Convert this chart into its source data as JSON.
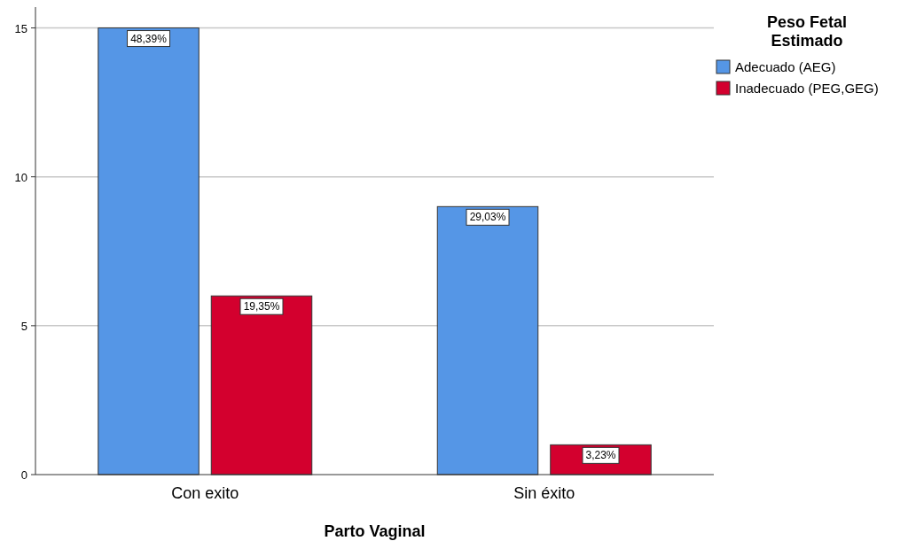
{
  "chart_data": {
    "type": "bar",
    "xlabel": "Parto Vaginal",
    "legend_title": "Peso Fetal Estimado",
    "categories": [
      "Con exito",
      "Sin éxito"
    ],
    "series": [
      {
        "name": "Adecuado (AEG)",
        "color": "#5596e6",
        "values": [
          15,
          9
        ]
      },
      {
        "name": "Inadecuado (PEG,GEG)",
        "color": "#d3002e",
        "values": [
          6,
          1
        ]
      }
    ],
    "annotations": [
      "48,39%",
      "29,03%",
      "19,35%",
      "3,23%"
    ],
    "ylim": [
      0,
      15.7
    ],
    "yticks": [
      0,
      5,
      10,
      15
    ],
    "grid": "y",
    "legend": "right"
  }
}
